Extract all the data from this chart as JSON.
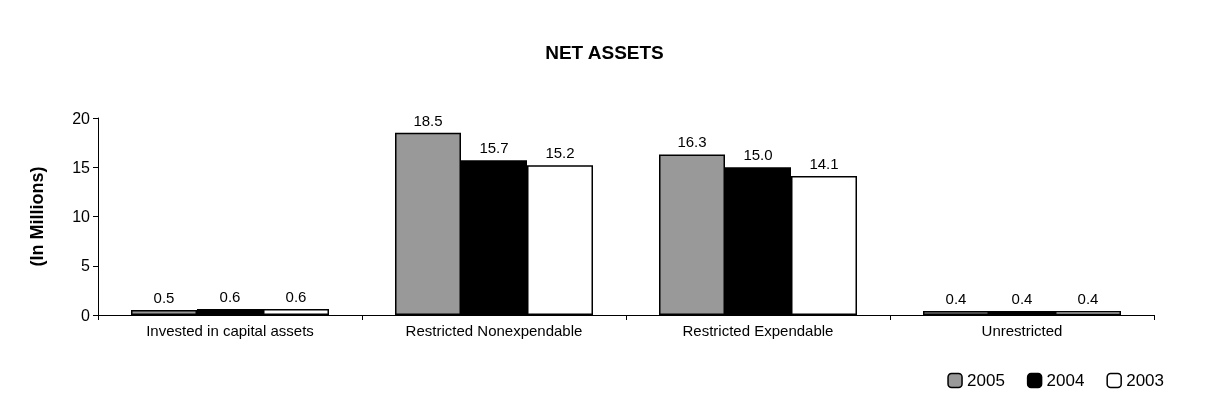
{
  "chart_data": {
    "type": "bar",
    "title": "NET ASSETS",
    "ylabel": "(In Millions)",
    "categories": [
      "Invested in capital assets",
      "Restricted Nonexpendable",
      "Restricted Expendable",
      "Unrestricted"
    ],
    "series": [
      {
        "name": "2005",
        "color": "#999999",
        "values": [
          0.5,
          18.5,
          16.3,
          0.4
        ],
        "value_labels": [
          "0.5",
          "18.5",
          "16.3",
          "0.4"
        ]
      },
      {
        "name": "2004",
        "color": "#000000",
        "values": [
          0.6,
          15.7,
          15.0,
          0.4
        ],
        "value_labels": [
          "0.6",
          "15.7",
          "15.0",
          "0.4"
        ]
      },
      {
        "name": "2003",
        "color": "#ffffff",
        "values": [
          0.6,
          15.2,
          14.1,
          0.4
        ],
        "value_labels": [
          "0.6",
          "15.2",
          "14.1",
          "0.4"
        ]
      }
    ],
    "ylim": [
      0,
      20
    ],
    "yticks": [
      0,
      5,
      10,
      15,
      20
    ],
    "grid": false,
    "legend": "bottom right"
  }
}
